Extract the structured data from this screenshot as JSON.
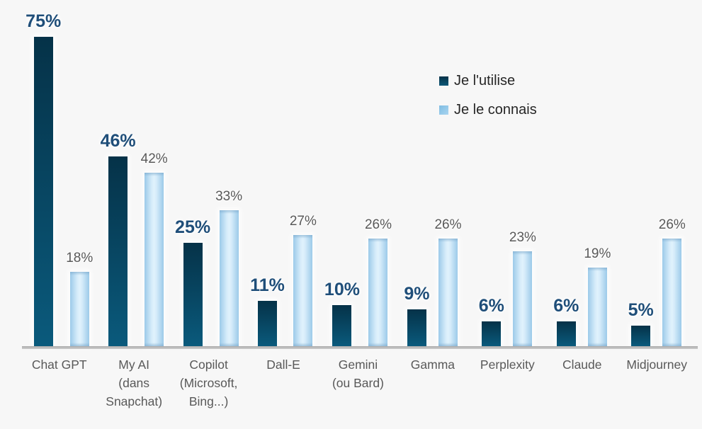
{
  "page": {
    "background_color": "#f7f7f7",
    "axis_line_color": "#b0b0b0"
  },
  "legend": {
    "position": "top-right",
    "items": [
      {
        "label": "Je l'utilise",
        "swatch_color": "#0d4a68"
      },
      {
        "label": "Je le connais",
        "swatch_color": "#8fc5e9"
      }
    ]
  },
  "chart_data": {
    "type": "bar",
    "title": "",
    "xlabel": "",
    "ylabel": "",
    "unit": "%",
    "ylim": [
      0,
      80
    ],
    "grid": false,
    "legend_position": "top-right",
    "categories": [
      "Chat GPT",
      "My AI\n(dans\nSnapchat)",
      "Copilot\n(Microsoft,\nBing...)",
      "Dall-E",
      "Gemini\n(ou Bard)",
      "Gamma",
      "Perplexity",
      "Claude",
      "Midjourney"
    ],
    "series": [
      {
        "name": "Je l'utilise",
        "values": [
          75,
          46,
          25,
          11,
          10,
          9,
          6,
          6,
          5
        ],
        "color_top": "#053248",
        "color_bottom": "#0a5a7c",
        "label_color": "#1f4e79"
      },
      {
        "name": "Je le connais",
        "values": [
          18,
          42,
          33,
          27,
          26,
          26,
          23,
          19,
          26
        ],
        "color_edge": "#9ccae9",
        "color_center": "#e0f2fc",
        "label_color": "#595959"
      }
    ]
  }
}
